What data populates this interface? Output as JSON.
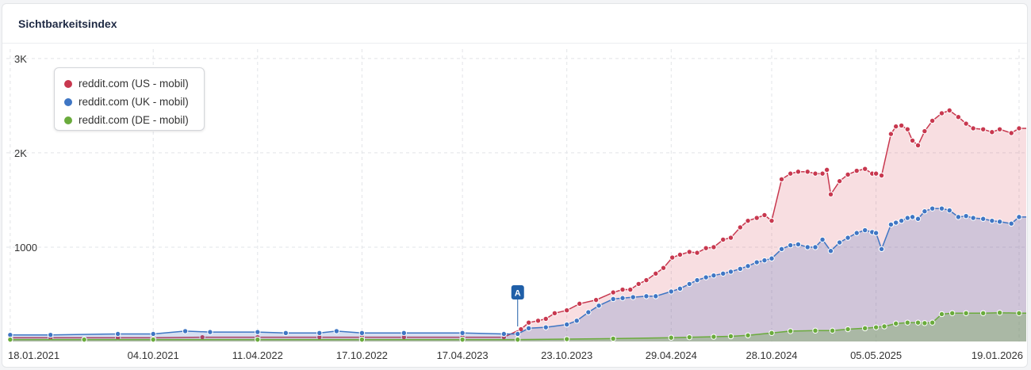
{
  "panel": {
    "title": "Sichtbarkeitsindex"
  },
  "colors": {
    "us": "#c8384f",
    "uk": "#3f76c4",
    "de": "#6aab3c",
    "grid": "#e2e4e8"
  },
  "legend": [
    {
      "label": "reddit.com (US - mobil)",
      "color": "#c8384f"
    },
    {
      "label": "reddit.com (UK - mobil)",
      "color": "#3f76c4"
    },
    {
      "label": "reddit.com (DE - mobil)",
      "color": "#6aab3c"
    }
  ],
  "chart_data": {
    "type": "area",
    "title": "Sichtbarkeitsindex",
    "xlabel": "",
    "ylabel": "",
    "y_ticks": [
      "1000",
      "2K",
      "3K"
    ],
    "ylim": [
      0,
      3100
    ],
    "x_ticks": [
      "18.01.2021",
      "04.10.2021",
      "11.04.2022",
      "17.10.2022",
      "17.04.2023",
      "23.10.2023",
      "29.04.2024",
      "28.10.2024",
      "05.05.2025",
      "19.01.2026"
    ],
    "xlim": [
      "2021-01-11",
      "2026-02-01"
    ],
    "grid": true,
    "legend_position": "top-left",
    "annotations": [
      {
        "label": "A",
        "date": "2023-07-26"
      }
    ],
    "series": [
      {
        "name": "reddit.com (US - mobil)",
        "points": [
          [
            "2021-01-18",
            40
          ],
          [
            "2021-04-01",
            40
          ],
          [
            "2021-08-01",
            40
          ],
          [
            "2021-10-04",
            40
          ],
          [
            "2022-01-01",
            45
          ],
          [
            "2022-04-11",
            45
          ],
          [
            "2022-08-01",
            45
          ],
          [
            "2022-10-17",
            45
          ],
          [
            "2023-01-01",
            45
          ],
          [
            "2023-04-17",
            45
          ],
          [
            "2023-07-01",
            45
          ],
          [
            "2023-08-01",
            130
          ],
          [
            "2023-08-15",
            200
          ],
          [
            "2023-09-01",
            220
          ],
          [
            "2023-09-15",
            240
          ],
          [
            "2023-10-01",
            300
          ],
          [
            "2023-10-23",
            330
          ],
          [
            "2023-11-15",
            400
          ],
          [
            "2023-12-15",
            440
          ],
          [
            "2024-01-15",
            520
          ],
          [
            "2024-02-01",
            550
          ],
          [
            "2024-02-15",
            550
          ],
          [
            "2024-03-01",
            610
          ],
          [
            "2024-03-15",
            650
          ],
          [
            "2024-04-01",
            720
          ],
          [
            "2024-04-15",
            780
          ],
          [
            "2024-05-01",
            890
          ],
          [
            "2024-05-15",
            920
          ],
          [
            "2024-06-01",
            950
          ],
          [
            "2024-06-15",
            940
          ],
          [
            "2024-07-01",
            990
          ],
          [
            "2024-07-15",
            1000
          ],
          [
            "2024-08-01",
            1080
          ],
          [
            "2024-08-15",
            1100
          ],
          [
            "2024-09-01",
            1210
          ],
          [
            "2024-09-15",
            1280
          ],
          [
            "2024-10-01",
            1310
          ],
          [
            "2024-10-15",
            1340
          ],
          [
            "2024-10-28",
            1280
          ],
          [
            "2024-11-15",
            1720
          ],
          [
            "2024-12-01",
            1780
          ],
          [
            "2024-12-15",
            1800
          ],
          [
            "2025-01-01",
            1800
          ],
          [
            "2025-01-15",
            1780
          ],
          [
            "2025-01-28",
            1780
          ],
          [
            "2025-02-05",
            1820
          ],
          [
            "2025-02-12",
            1560
          ],
          [
            "2025-02-28",
            1700
          ],
          [
            "2025-03-15",
            1770
          ],
          [
            "2025-03-31",
            1810
          ],
          [
            "2025-04-15",
            1830
          ],
          [
            "2025-04-28",
            1780
          ],
          [
            "2025-05-05",
            1780
          ],
          [
            "2025-05-15",
            1760
          ],
          [
            "2025-06-01",
            2200
          ],
          [
            "2025-06-10",
            2280
          ],
          [
            "2025-06-20",
            2290
          ],
          [
            "2025-07-01",
            2250
          ],
          [
            "2025-07-10",
            2130
          ],
          [
            "2025-07-20",
            2080
          ],
          [
            "2025-08-01",
            2230
          ],
          [
            "2025-08-15",
            2340
          ],
          [
            "2025-09-01",
            2420
          ],
          [
            "2025-09-15",
            2450
          ],
          [
            "2025-10-01",
            2380
          ],
          [
            "2025-10-15",
            2310
          ],
          [
            "2025-10-28",
            2260
          ],
          [
            "2025-11-15",
            2250
          ],
          [
            "2025-12-01",
            2220
          ],
          [
            "2025-12-15",
            2250
          ],
          [
            "2026-01-05",
            2210
          ],
          [
            "2026-01-19",
            2260
          ],
          [
            "2026-02-01",
            2260
          ]
        ]
      },
      {
        "name": "reddit.com (UK - mobil)",
        "points": [
          [
            "2021-01-18",
            70
          ],
          [
            "2021-04-01",
            70
          ],
          [
            "2021-08-01",
            80
          ],
          [
            "2021-10-04",
            80
          ],
          [
            "2021-12-01",
            110
          ],
          [
            "2022-01-15",
            100
          ],
          [
            "2022-04-11",
            100
          ],
          [
            "2022-06-01",
            90
          ],
          [
            "2022-08-01",
            90
          ],
          [
            "2022-09-01",
            110
          ],
          [
            "2022-10-17",
            90
          ],
          [
            "2023-01-01",
            90
          ],
          [
            "2023-04-17",
            90
          ],
          [
            "2023-07-01",
            80
          ],
          [
            "2023-07-26",
            80
          ],
          [
            "2023-08-15",
            140
          ],
          [
            "2023-09-15",
            150
          ],
          [
            "2023-10-23",
            180
          ],
          [
            "2023-11-10",
            220
          ],
          [
            "2023-12-01",
            310
          ],
          [
            "2023-12-20",
            380
          ],
          [
            "2024-01-15",
            450
          ],
          [
            "2024-02-01",
            460
          ],
          [
            "2024-02-20",
            470
          ],
          [
            "2024-03-15",
            480
          ],
          [
            "2024-04-01",
            480
          ],
          [
            "2024-04-29",
            530
          ],
          [
            "2024-05-15",
            560
          ],
          [
            "2024-06-01",
            610
          ],
          [
            "2024-06-15",
            650
          ],
          [
            "2024-07-01",
            680
          ],
          [
            "2024-07-15",
            700
          ],
          [
            "2024-08-01",
            720
          ],
          [
            "2024-08-15",
            740
          ],
          [
            "2024-09-01",
            770
          ],
          [
            "2024-09-15",
            800
          ],
          [
            "2024-10-01",
            840
          ],
          [
            "2024-10-15",
            860
          ],
          [
            "2024-10-28",
            880
          ],
          [
            "2024-11-15",
            980
          ],
          [
            "2024-12-01",
            1020
          ],
          [
            "2024-12-15",
            1030
          ],
          [
            "2025-01-01",
            1000
          ],
          [
            "2025-01-15",
            1000
          ],
          [
            "2025-01-28",
            1080
          ],
          [
            "2025-02-12",
            960
          ],
          [
            "2025-02-28",
            1050
          ],
          [
            "2025-03-15",
            1100
          ],
          [
            "2025-03-31",
            1150
          ],
          [
            "2025-04-15",
            1180
          ],
          [
            "2025-04-28",
            1160
          ],
          [
            "2025-05-05",
            1150
          ],
          [
            "2025-05-15",
            980
          ],
          [
            "2025-06-01",
            1240
          ],
          [
            "2025-06-10",
            1260
          ],
          [
            "2025-06-20",
            1280
          ],
          [
            "2025-07-01",
            1310
          ],
          [
            "2025-07-10",
            1320
          ],
          [
            "2025-07-20",
            1300
          ],
          [
            "2025-08-01",
            1380
          ],
          [
            "2025-08-15",
            1410
          ],
          [
            "2025-09-01",
            1410
          ],
          [
            "2025-09-15",
            1390
          ],
          [
            "2025-10-01",
            1320
          ],
          [
            "2025-10-15",
            1330
          ],
          [
            "2025-10-28",
            1310
          ],
          [
            "2025-11-15",
            1300
          ],
          [
            "2025-12-01",
            1280
          ],
          [
            "2025-12-15",
            1270
          ],
          [
            "2026-01-05",
            1250
          ],
          [
            "2026-01-19",
            1320
          ],
          [
            "2026-02-01",
            1320
          ]
        ]
      },
      {
        "name": "reddit.com (DE - mobil)",
        "points": [
          [
            "2021-01-18",
            20
          ],
          [
            "2021-06-01",
            20
          ],
          [
            "2021-10-04",
            20
          ],
          [
            "2022-04-11",
            20
          ],
          [
            "2022-10-17",
            20
          ],
          [
            "2023-04-17",
            20
          ],
          [
            "2023-07-26",
            20
          ],
          [
            "2023-10-23",
            25
          ],
          [
            "2024-01-15",
            30
          ],
          [
            "2024-04-29",
            40
          ],
          [
            "2024-06-01",
            45
          ],
          [
            "2024-07-15",
            50
          ],
          [
            "2024-08-15",
            55
          ],
          [
            "2024-09-15",
            65
          ],
          [
            "2024-10-28",
            90
          ],
          [
            "2024-12-01",
            110
          ],
          [
            "2025-01-15",
            115
          ],
          [
            "2025-02-15",
            115
          ],
          [
            "2025-03-15",
            130
          ],
          [
            "2025-04-15",
            140
          ],
          [
            "2025-05-05",
            150
          ],
          [
            "2025-05-20",
            160
          ],
          [
            "2025-06-10",
            190
          ],
          [
            "2025-07-01",
            200
          ],
          [
            "2025-07-20",
            200
          ],
          [
            "2025-08-01",
            195
          ],
          [
            "2025-08-15",
            200
          ],
          [
            "2025-09-01",
            290
          ],
          [
            "2025-09-20",
            300
          ],
          [
            "2025-10-15",
            300
          ],
          [
            "2025-11-15",
            300
          ],
          [
            "2025-12-15",
            305
          ],
          [
            "2026-01-19",
            300
          ],
          [
            "2026-02-01",
            300
          ]
        ]
      }
    ]
  }
}
